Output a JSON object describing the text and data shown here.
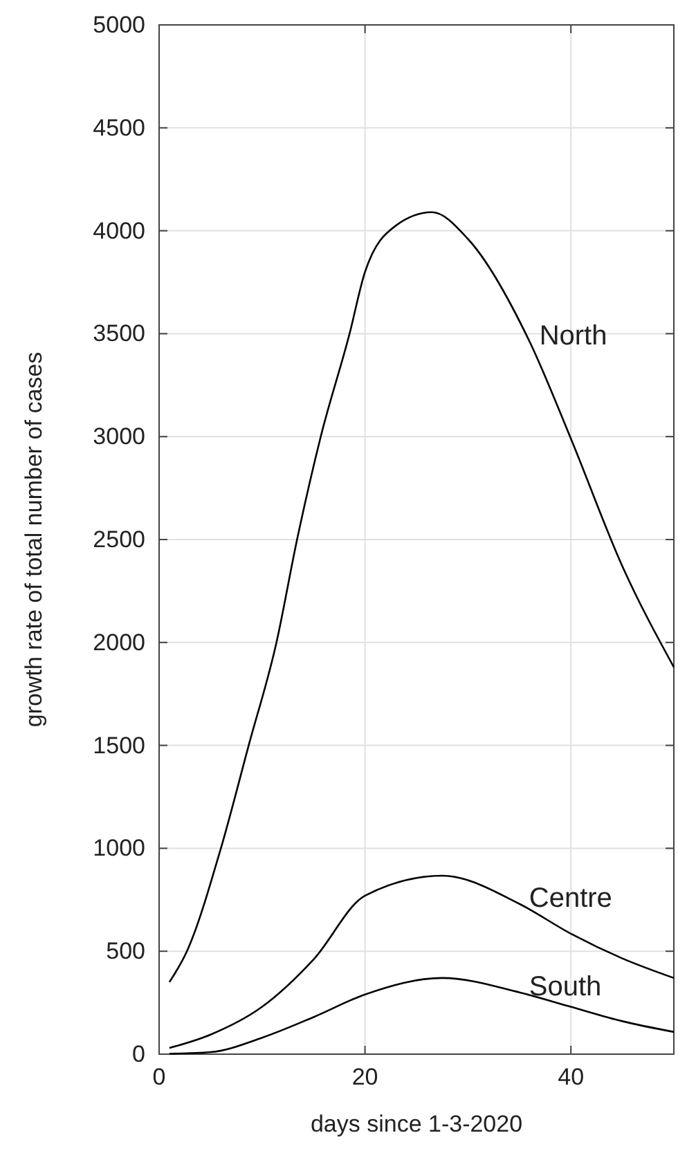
{
  "chart_data": {
    "type": "line",
    "xlabel": "days since 1-3-2020",
    "ylabel": "growth rate of total number of cases",
    "xlim": [
      0,
      50
    ],
    "ylim": [
      0,
      5000
    ],
    "xticks": [
      0,
      20,
      40
    ],
    "yticks": [
      0,
      500,
      1000,
      1500,
      2000,
      2500,
      3000,
      3500,
      4000,
      4500,
      5000
    ],
    "grid": true,
    "marker": "none",
    "line_style": "solid",
    "series": [
      {
        "name": "North",
        "color": "#000000",
        "x": [
          1,
          2.7,
          6,
          8.7,
          11.4,
          13.4,
          15.7,
          18.5,
          20,
          23,
          26.5,
          30,
          36,
          40,
          45,
          50
        ],
        "values": [
          350,
          500,
          1000,
          1500,
          2000,
          2500,
          3000,
          3500,
          3800,
          4025,
          4090,
          3960,
          3460,
          2990,
          2370,
          1880
        ]
      },
      {
        "name": "Centre",
        "color": "#000000",
        "x": [
          1,
          5,
          10,
          15,
          20,
          27.5,
          35,
          40,
          45,
          50
        ],
        "values": [
          30,
          95,
          230,
          460,
          770,
          867,
          730,
          585,
          465,
          370
        ]
      },
      {
        "name": "South",
        "color": "#000000",
        "x": [
          1,
          5,
          10,
          15,
          20,
          27.5,
          35,
          40,
          45,
          50
        ],
        "values": [
          2,
          10,
          80,
          180,
          290,
          370,
          300,
          230,
          160,
          108
        ]
      }
    ]
  }
}
